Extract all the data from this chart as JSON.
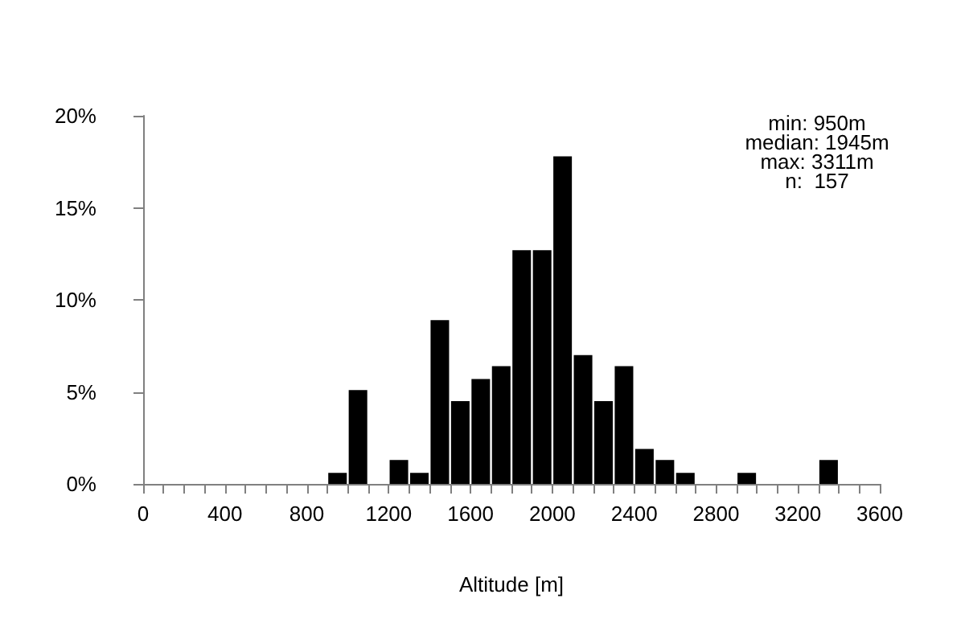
{
  "chart_data": {
    "type": "histogram",
    "xlabel": "Altitude [m]",
    "bins": [
      0,
      100,
      200,
      300,
      400,
      500,
      600,
      700,
      800,
      900,
      1000,
      1100,
      1200,
      1300,
      1400,
      1500,
      1600,
      1700,
      1800,
      1900,
      2000,
      2100,
      2200,
      2300,
      2400,
      2500,
      2600,
      2700,
      2800,
      2900,
      3000,
      3100,
      3200,
      3300,
      3400,
      3500,
      3600
    ],
    "values": [
      0,
      0,
      0,
      0,
      0,
      0,
      0,
      0,
      0,
      0.6,
      5.1,
      0,
      1.3,
      0.6,
      8.9,
      4.5,
      5.7,
      6.4,
      12.7,
      12.7,
      17.8,
      7.0,
      4.5,
      6.4,
      1.9,
      1.3,
      0.6,
      0,
      0,
      0.6,
      0,
      0,
      0,
      1.3,
      0,
      0
    ],
    "color": "#000000",
    "xlim": [
      0,
      3600
    ],
    "xticks": [
      0,
      {
        "value": 100,
        "label": null
      },
      {
        "value": 200,
        "label": null
      },
      {
        "value": 300,
        "label": null
      },
      400,
      {
        "value": 500,
        "label": null
      },
      {
        "value": 600,
        "label": null
      },
      {
        "value": 700,
        "label": null
      },
      800,
      {
        "value": 900,
        "label": null
      },
      {
        "value": 1000,
        "label": null
      },
      {
        "value": 1100,
        "label": null
      },
      1200,
      {
        "value": 1300,
        "label": null
      },
      {
        "value": 1400,
        "label": null
      },
      {
        "value": 1500,
        "label": null
      },
      1600,
      {
        "value": 1700,
        "label": null
      },
      {
        "value": 1800,
        "label": null
      },
      {
        "value": 1900,
        "label": null
      },
      2000,
      {
        "value": 2100,
        "label": null
      },
      {
        "value": 2200,
        "label": null
      },
      {
        "value": 2300,
        "label": null
      },
      2400,
      {
        "value": 2500,
        "label": null
      },
      {
        "value": 2600,
        "label": null
      },
      {
        "value": 2700,
        "label": null
      },
      2800,
      {
        "value": 2900,
        "label": null
      },
      {
        "value": 3000,
        "label": null
      },
      {
        "value": 3100,
        "label": null
      },
      3200,
      {
        "value": 3300,
        "label": null
      },
      {
        "value": 3400,
        "label": null
      },
      {
        "value": 3500,
        "label": null
      },
      3600
    ],
    "ylim": [
      0,
      20
    ],
    "yticks": [
      {
        "value": 0,
        "label": "0%"
      },
      {
        "value": 5,
        "label": "5%"
      },
      {
        "value": 10,
        "label": "10%"
      },
      {
        "value": 15,
        "label": "15%"
      },
      {
        "value": 20,
        "label": "20%"
      }
    ],
    "grid": false,
    "annotations": [
      "min: 950m",
      "median: 1945m",
      "max: 3311m",
      "n:  157"
    ]
  }
}
